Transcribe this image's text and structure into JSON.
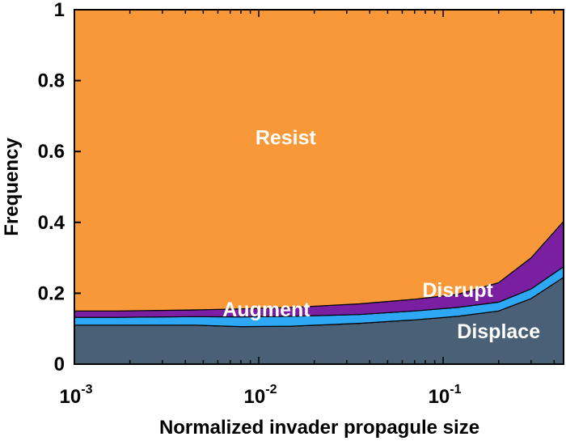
{
  "chart_data": {
    "type": "area",
    "stacked": true,
    "xscale": "log",
    "xlim": [
      0.001,
      0.45
    ],
    "ylim": [
      0,
      1
    ],
    "xlabel": "Normalized invader propagule size",
    "ylabel": "Frequency",
    "x_ticks": [
      {
        "value": 0.001,
        "base": "10",
        "exp": "-3"
      },
      {
        "value": 0.01,
        "base": "10",
        "exp": "-2"
      },
      {
        "value": 0.1,
        "base": "10",
        "exp": "-1"
      }
    ],
    "y_ticks": [
      {
        "value": 0,
        "label": "0"
      },
      {
        "value": 0.2,
        "label": "0.2"
      },
      {
        "value": 0.4,
        "label": "0.4"
      },
      {
        "value": 0.6,
        "label": "0.6"
      },
      {
        "value": 0.8,
        "label": "0.8"
      },
      {
        "value": 1,
        "label": "1"
      }
    ],
    "x": [
      0.001,
      0.0017,
      0.0045,
      0.008,
      0.015,
      0.035,
      0.07,
      0.12,
      0.2,
      0.3,
      0.45
    ],
    "series": [
      {
        "name": "Displace",
        "color": "#4a6076",
        "values": [
          0.11,
          0.11,
          0.11,
          0.106,
          0.107,
          0.115,
          0.125,
          0.135,
          0.15,
          0.185,
          0.245
        ]
      },
      {
        "name": "Augment",
        "color": "#2ea8f4",
        "values": [
          0.022,
          0.022,
          0.024,
          0.027,
          0.028,
          0.025,
          0.025,
          0.025,
          0.025,
          0.027,
          0.03
        ]
      },
      {
        "name": "Disrupt",
        "color": "#7a1fa2",
        "values": [
          0.018,
          0.018,
          0.019,
          0.023,
          0.025,
          0.03,
          0.033,
          0.037,
          0.055,
          0.088,
          0.128
        ]
      },
      {
        "name": "Resist",
        "color": "#f89838",
        "values": [
          0.85,
          0.85,
          0.847,
          0.844,
          0.84,
          0.83,
          0.817,
          0.803,
          0.77,
          0.7,
          0.597
        ]
      }
    ],
    "annotations": [
      {
        "text": "Resist",
        "x": 0.014,
        "y": 0.62
      },
      {
        "text": "Disrupt",
        "x": 0.12,
        "y": 0.19
      },
      {
        "text": "Augment",
        "x": 0.011,
        "y": 0.135
      },
      {
        "text": "Displace",
        "x": 0.2,
        "y": 0.073
      }
    ],
    "grid": false,
    "legend": "none"
  }
}
